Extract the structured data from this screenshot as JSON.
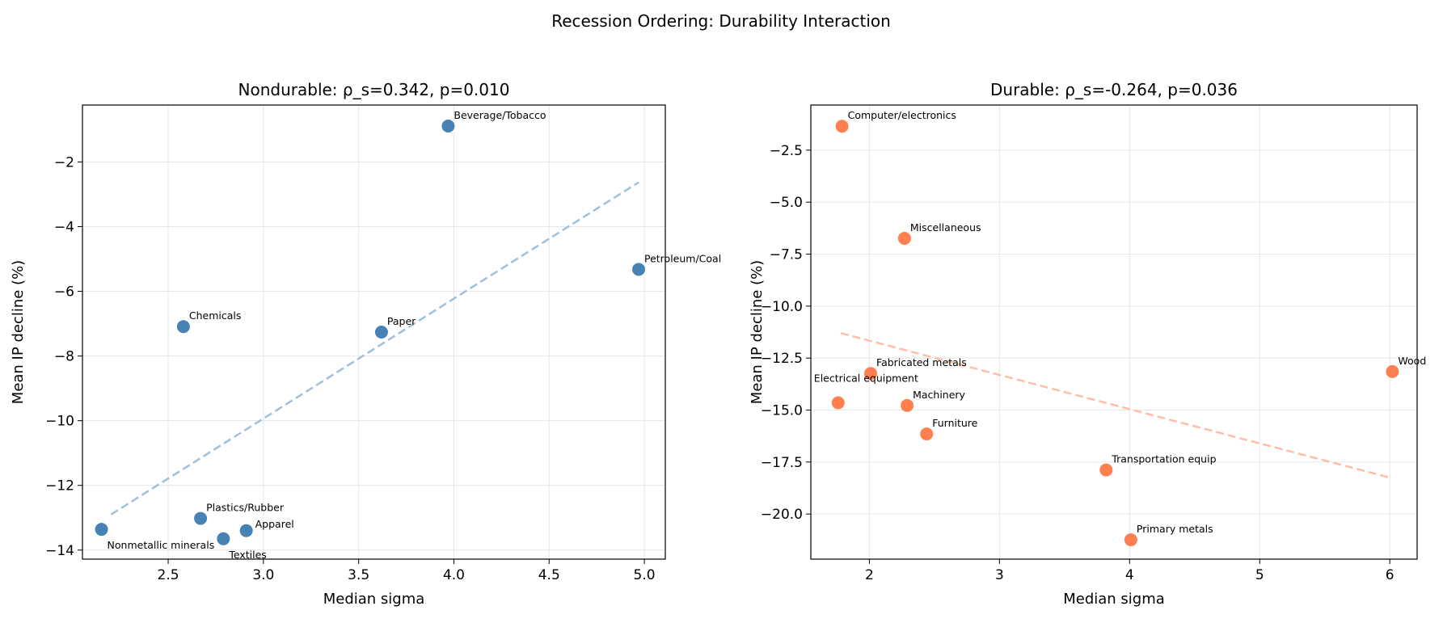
{
  "suptitle": "Recession Ordering: Durability Interaction",
  "chart_data": [
    {
      "type": "scatter",
      "title": "Nondurable: ρ_s=0.342, p=0.010",
      "xlabel": "Median sigma",
      "ylabel": "Mean IP decline (%)",
      "xlim": [
        2.05,
        5.11
      ],
      "ylim": [
        -14.28,
        -0.24
      ],
      "xticks": [
        2.5,
        3.0,
        3.5,
        4.0,
        4.5,
        5.0
      ],
      "xtick_labels": [
        "2.5",
        "3.0",
        "3.5",
        "4.0",
        "4.5",
        "5.0"
      ],
      "yticks": [
        -14,
        -12,
        -10,
        -8,
        -6,
        -4,
        -2
      ],
      "ytick_labels": [
        "−14",
        "−12",
        "−10",
        "−8",
        "−6",
        "−4",
        "−2"
      ],
      "grid": true,
      "color": "#4682b4",
      "trend_color": "#a0bfdc",
      "points": [
        {
          "label": "Beverage/Tobacco",
          "x": 3.97,
          "y": -0.89
        },
        {
          "label": "Petroleum/Coal",
          "x": 4.97,
          "y": -5.32
        },
        {
          "label": "Chemicals",
          "x": 2.58,
          "y": -7.09
        },
        {
          "label": "Paper",
          "x": 3.62,
          "y": -7.26
        },
        {
          "label": "Nonmetallic minerals",
          "x": 2.15,
          "y": -13.36
        },
        {
          "label": "Plastics/Rubber",
          "x": 2.67,
          "y": -13.02
        },
        {
          "label": "Textiles",
          "x": 2.79,
          "y": -13.65
        },
        {
          "label": "Apparel",
          "x": 2.91,
          "y": -13.4
        }
      ],
      "trend": {
        "x": [
          2.2,
          4.97
        ],
        "y": [
          -12.9,
          -2.63
        ]
      }
    },
    {
      "type": "scatter",
      "title": "Durable: ρ_s=-0.264, p=0.036",
      "xlabel": "Median sigma",
      "ylabel": "Mean IP decline (%)",
      "xlim": [
        1.55,
        6.21
      ],
      "ylim": [
        -22.17,
        -0.33
      ],
      "xticks": [
        2,
        3,
        4,
        5,
        6
      ],
      "xtick_labels": [
        "2",
        "3",
        "4",
        "5",
        "6"
      ],
      "yticks": [
        -20,
        -17.5,
        -15,
        -12.5,
        -10,
        -7.5,
        -5,
        -2.5
      ],
      "ytick_labels": [
        "−20.0",
        "−17.5",
        "−15.0",
        "−12.5",
        "−10.0",
        "−7.5",
        "−5.0",
        "−2.5"
      ],
      "grid": true,
      "color": "#ff7f50",
      "trend_color": "#ffbfa6",
      "points": [
        {
          "label": "Computer/electronics",
          "x": 1.79,
          "y": -1.35
        },
        {
          "label": "Miscellaneous",
          "x": 2.27,
          "y": -6.74
        },
        {
          "label": "Fabricated metals",
          "x": 2.01,
          "y": -13.24
        },
        {
          "label": "Wood",
          "x": 6.02,
          "y": -13.15
        },
        {
          "label": "Electrical equipment",
          "x": 1.76,
          "y": -14.65
        },
        {
          "label": "Machinery",
          "x": 2.29,
          "y": -14.78
        },
        {
          "label": "Furniture",
          "x": 2.44,
          "y": -16.15
        },
        {
          "label": "Transportation equip",
          "x": 3.82,
          "y": -17.88
        },
        {
          "label": "Primary metals",
          "x": 4.01,
          "y": -21.24
        }
      ],
      "trend": {
        "x": [
          1.78,
          6.0
        ],
        "y": [
          -11.3,
          -18.25
        ]
      }
    }
  ]
}
